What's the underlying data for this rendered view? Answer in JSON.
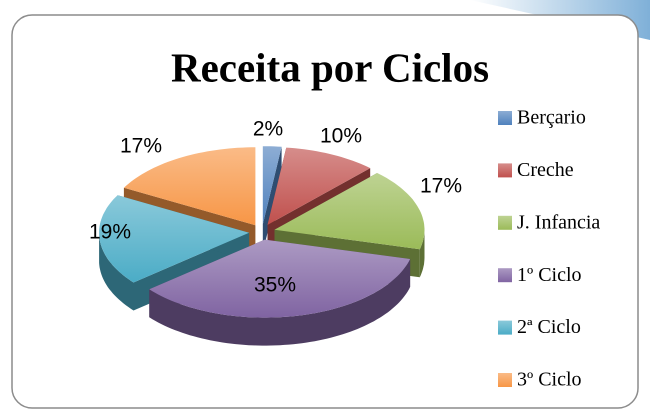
{
  "chart_data": {
    "type": "pie",
    "title": "Receita por Ciclos",
    "categories": [
      "Berçario",
      "Creche",
      "J. Infancia",
      "1º Ciclo",
      "2ª Ciclo",
      "3º Ciclo"
    ],
    "values": [
      2,
      10,
      17,
      35,
      19,
      17
    ],
    "value_labels": [
      "2%",
      "10%",
      "17%",
      "35%",
      "19%",
      "17%"
    ],
    "colors": [
      "#4f81bd",
      "#c0504d",
      "#9bbb59",
      "#8064a2",
      "#4bacc6",
      "#f79646"
    ],
    "legend": "right"
  }
}
